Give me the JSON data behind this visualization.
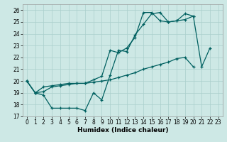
{
  "xlabel": "Humidex (Indice chaleur)",
  "xlim": [
    -0.5,
    23.5
  ],
  "ylim": [
    17,
    26.5
  ],
  "yticks": [
    17,
    18,
    19,
    20,
    21,
    22,
    23,
    24,
    25,
    26
  ],
  "xticks": [
    0,
    1,
    2,
    3,
    4,
    5,
    6,
    7,
    8,
    9,
    10,
    11,
    12,
    13,
    14,
    15,
    16,
    17,
    18,
    19,
    20,
    21,
    22,
    23
  ],
  "background_color": "#cde8e5",
  "grid_color": "#aacfcc",
  "line_color": "#006060",
  "line1_y": [
    20,
    19,
    18.8,
    17.7,
    17.7,
    17.7,
    17.7,
    17.5,
    19.0,
    18.4,
    20.5,
    22.6,
    22.5,
    23.9,
    24.8,
    25.7,
    25.8,
    25.0,
    25.1,
    25.2,
    25.5,
    21.2,
    22.8,
    null
  ],
  "line2_y": [
    20,
    19,
    19.5,
    19.6,
    19.7,
    19.8,
    19.8,
    19.8,
    20.1,
    20.4,
    22.6,
    22.4,
    22.8,
    23.7,
    25.8,
    25.8,
    25.1,
    25.0,
    25.1,
    25.7,
    25.5,
    null,
    null,
    null
  ],
  "line3_y": [
    20,
    19,
    19.1,
    19.5,
    19.6,
    19.7,
    19.8,
    19.8,
    19.9,
    20.0,
    20.1,
    20.3,
    20.5,
    20.7,
    21.0,
    21.2,
    21.4,
    21.6,
    21.9,
    22.0,
    21.2,
    null,
    null,
    null
  ]
}
